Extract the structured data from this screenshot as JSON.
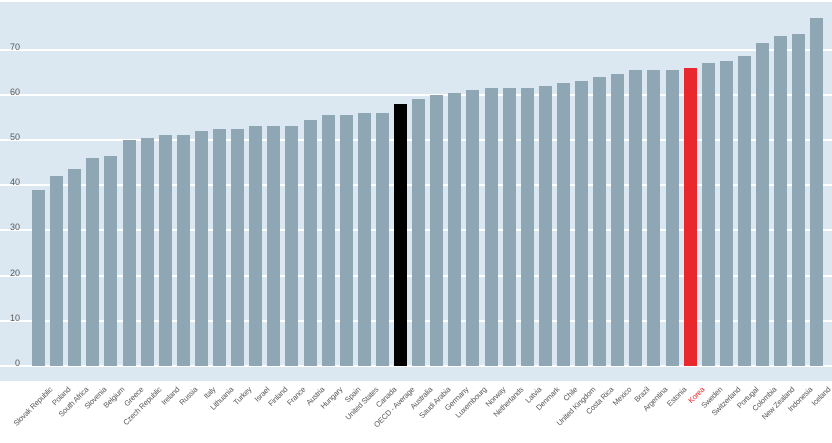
{
  "chart_data": {
    "type": "bar",
    "title": "",
    "xlabel": "",
    "ylabel": "",
    "categories": [
      "Slovak Republic",
      "Poland",
      "South Africa",
      "Slovenia",
      "Belgium",
      "Greece",
      "Czech Republic",
      "Ireland",
      "Russia",
      "Italy",
      "Lithuania",
      "Turkey",
      "Israel",
      "Finland",
      "France",
      "Austria",
      "Hungary",
      "Spain",
      "United States",
      "Canada",
      "OECD - Average",
      "Australia",
      "Saudi Arabia",
      "Germany",
      "Luxembourg",
      "Norway",
      "Netherlands",
      "Latvia",
      "Denmark",
      "Chile",
      "United Kingdom",
      "Costa Rica",
      "Mexico",
      "Brazil",
      "Argentina",
      "Estonia",
      "Korea",
      "Sweden",
      "Switzerland",
      "Portugal",
      "Colombia",
      "New Zealand",
      "Indonesia",
      "Iceland"
    ],
    "values": [
      39,
      42,
      43.5,
      46,
      46.5,
      50,
      50.5,
      51,
      51,
      52,
      52.5,
      52.5,
      53,
      53,
      53,
      54.5,
      55.5,
      55.5,
      56,
      56,
      58,
      59,
      60,
      60.5,
      61,
      61.5,
      61.5,
      61.5,
      62,
      62.5,
      63,
      64,
      64.5,
      65.5,
      65.5,
      65.5,
      66,
      67,
      67.5,
      68.5,
      71.5,
      73,
      73.5,
      77
    ],
    "yticks": [
      0,
      10,
      20,
      30,
      40,
      50,
      60,
      70
    ],
    "ylim": [
      0,
      78
    ],
    "grid": "horizontal-white",
    "legend": "none",
    "highlight_black_category": "OECD - Average",
    "highlight_red_category": "Korea",
    "colors": {
      "bar": "#8fa6b5",
      "black_bar": "#000000",
      "red_bar": "#e8282c",
      "plot_background": "#dce8f1",
      "gridline": "#ffffff",
      "tick_label": "#595959",
      "red_label": "#e8282c"
    }
  }
}
